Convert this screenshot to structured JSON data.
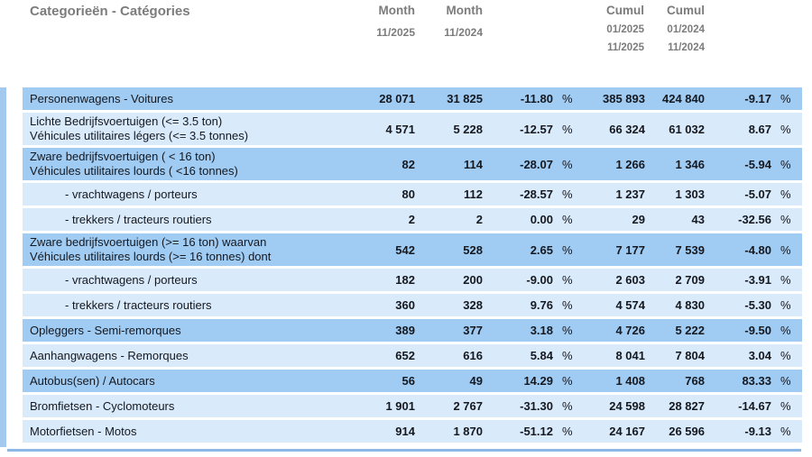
{
  "header": {
    "category_title": "Categorieën - Catégories",
    "month_current": {
      "label": "Month",
      "period": "11/2025"
    },
    "month_previous": {
      "label": "Month",
      "period": "11/2024"
    },
    "cumul_current": {
      "label": "Cumul",
      "from": "01/2025",
      "to": "11/2025"
    },
    "cumul_previous": {
      "label": "Cumul",
      "from": "01/2024",
      "to": "11/2024"
    }
  },
  "percent_sign": "%",
  "colors": {
    "row_dark": "#a0ccf4",
    "row_light": "#d9eafa",
    "left_strip": "#a3c9ef",
    "bottom_line": "#8cb9e6",
    "header_text": "#7c7c7c",
    "data_text": "#15181f"
  },
  "rows": [
    {
      "label_nl": "Personenwagens - Voitures",
      "label_fr": "",
      "shade": "dark",
      "indent": false,
      "month_current": "28 071",
      "month_previous": "31 825",
      "month_change": "-11.80",
      "cumul_current": "385 893",
      "cumul_previous": "424 840",
      "cumul_change": "-9.17"
    },
    {
      "label_nl": "Lichte Bedrijfsvoertuigen (<= 3.5 ton)",
      "label_fr": "Véhicules utilitaires légers (<= 3.5 tonnes)",
      "shade": "light",
      "indent": false,
      "month_current": "4 571",
      "month_previous": "5 228",
      "month_change": "-12.57",
      "cumul_current": "66 324",
      "cumul_previous": "61 032",
      "cumul_change": "8.67"
    },
    {
      "label_nl": "Zware bedrijfsvoertuigen ( < 16 ton)",
      "label_fr": "Véhicules utilitaires lourds ( <16 tonnes)",
      "shade": "dark",
      "indent": false,
      "month_current": "82",
      "month_previous": "114",
      "month_change": "-28.07",
      "cumul_current": "1 266",
      "cumul_previous": "1 346",
      "cumul_change": "-5.94"
    },
    {
      "label_nl": "- vrachtwagens / porteurs",
      "label_fr": "",
      "shade": "light",
      "indent": true,
      "month_current": "80",
      "month_previous": "112",
      "month_change": "-28.57",
      "cumul_current": "1 237",
      "cumul_previous": "1 303",
      "cumul_change": "-5.07"
    },
    {
      "label_nl": "- trekkers / tracteurs routiers",
      "label_fr": "",
      "shade": "light",
      "indent": true,
      "month_current": "2",
      "month_previous": "2",
      "month_change": "0.00",
      "cumul_current": "29",
      "cumul_previous": "43",
      "cumul_change": "-32.56"
    },
    {
      "label_nl": "Zware bedrijfsvoertuigen (>= 16 ton) waarvan",
      "label_fr": "Véhicules utilitaires lourds (>= 16 tonnes) dont",
      "shade": "dark",
      "indent": false,
      "month_current": "542",
      "month_previous": "528",
      "month_change": "2.65",
      "cumul_current": "7 177",
      "cumul_previous": "7 539",
      "cumul_change": "-4.80"
    },
    {
      "label_nl": "- vrachtwagens / porteurs",
      "label_fr": "",
      "shade": "light",
      "indent": true,
      "month_current": "182",
      "month_previous": "200",
      "month_change": "-9.00",
      "cumul_current": "2 603",
      "cumul_previous": "2 709",
      "cumul_change": "-3.91"
    },
    {
      "label_nl": "- trekkers / tracteurs routiers",
      "label_fr": "",
      "shade": "light",
      "indent": true,
      "month_current": "360",
      "month_previous": "328",
      "month_change": "9.76",
      "cumul_current": "4 574",
      "cumul_previous": "4 830",
      "cumul_change": "-5.30"
    },
    {
      "label_nl": "Opleggers - Semi-remorques",
      "label_fr": "",
      "shade": "dark",
      "indent": false,
      "month_current": "389",
      "month_previous": "377",
      "month_change": "3.18",
      "cumul_current": "4 726",
      "cumul_previous": "5 222",
      "cumul_change": "-9.50"
    },
    {
      "label_nl": "Aanhangwagens - Remorques",
      "label_fr": "",
      "shade": "light",
      "indent": false,
      "month_current": "652",
      "month_previous": "616",
      "month_change": "5.84",
      "cumul_current": "8 041",
      "cumul_previous": "7 804",
      "cumul_change": "3.04"
    },
    {
      "label_nl": "Autobus(sen) / Autocars",
      "label_fr": "",
      "shade": "dark",
      "indent": false,
      "month_current": "56",
      "month_previous": "49",
      "month_change": "14.29",
      "cumul_current": "1 408",
      "cumul_previous": "768",
      "cumul_change": "83.33"
    },
    {
      "label_nl": "Bromfietsen - Cyclomoteurs",
      "label_fr": "",
      "shade": "light",
      "indent": false,
      "month_current": "1 901",
      "month_previous": "2 767",
      "month_change": "-31.30",
      "cumul_current": "24 598",
      "cumul_previous": "28 827",
      "cumul_change": "-14.67"
    },
    {
      "label_nl": "Motorfietsen - Motos",
      "label_fr": "",
      "shade": "light",
      "indent": false,
      "month_current": "914",
      "month_previous": "1 870",
      "month_change": "-51.12",
      "cumul_current": "24 167",
      "cumul_previous": "26 596",
      "cumul_change": "-9.13"
    }
  ]
}
